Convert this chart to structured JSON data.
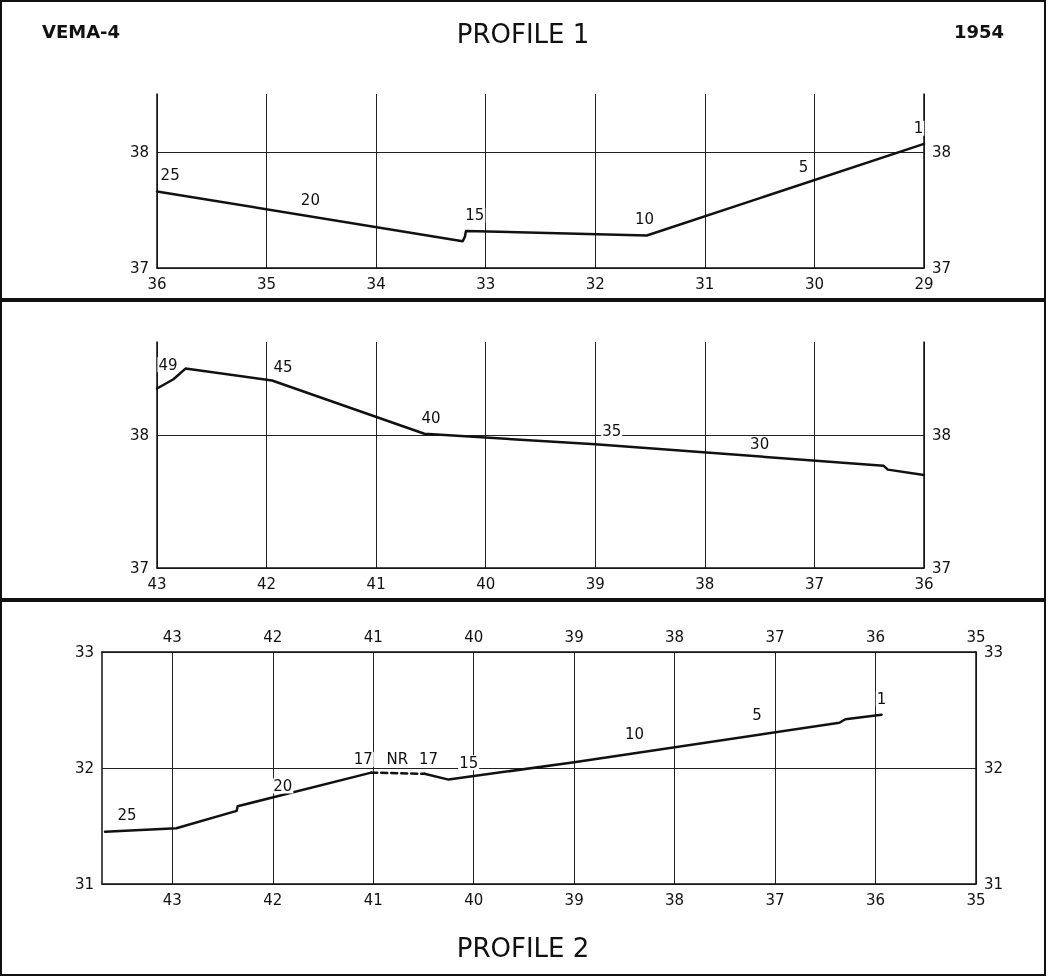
{
  "chart_data": [
    {
      "type": "line",
      "title": "PROFILE 1",
      "annotations": [
        "VEMA-4",
        "1954",
        {
          "text": "25",
          "x": 35.88,
          "y": 37.68
        },
        {
          "text": "20",
          "x": 34.6,
          "y": 37.46
        },
        {
          "text": "15",
          "x": 33.1,
          "y": 37.33
        },
        {
          "text": "10",
          "x": 31.55,
          "y": 37.3
        },
        {
          "text": "5",
          "x": 30.1,
          "y": 37.75
        },
        {
          "text": "1",
          "x": 29.05,
          "y": 38.08
        }
      ],
      "series": [
        {
          "color": "#111111",
          "x": [
            36,
            33.21,
            33.19,
            33.18,
            31.53,
            29.0
          ],
          "values": [
            37.66,
            37.23,
            37.27,
            37.32,
            37.28,
            38.07
          ]
        }
      ],
      "xlim": [
        36,
        29
      ],
      "xticks": [
        36,
        35,
        34,
        33,
        32,
        31,
        30,
        29
      ],
      "ylim": [
        37,
        38.5
      ],
      "yticks": [
        37,
        38
      ],
      "y2lim": [
        37,
        38.5
      ],
      "y2ticks": [
        37,
        38
      ],
      "grid": true,
      "marker": "none",
      "line_style": "solid"
    },
    {
      "type": "line",
      "annotations": [
        {
          "text": "49",
          "x": 42.9,
          "y": 38.42
        },
        {
          "text": "45",
          "x": 41.85,
          "y": 38.4
        },
        {
          "text": "40",
          "x": 40.5,
          "y": 38.02
        },
        {
          "text": "35",
          "x": 38.85,
          "y": 37.92
        },
        {
          "text": "30",
          "x": 37.5,
          "y": 37.82
        }
      ],
      "series": [
        {
          "color": "#111111",
          "x": [
            43.0,
            42.85,
            42.74,
            41.95,
            40.56,
            39.0,
            36.37,
            36.33,
            36.0
          ],
          "values": [
            38.35,
            38.42,
            38.5,
            38.41,
            38.01,
            37.93,
            37.77,
            37.74,
            37.7
          ]
        }
      ],
      "xlim": [
        43,
        36
      ],
      "xticks": [
        43,
        42,
        41,
        40,
        39,
        38,
        37,
        36
      ],
      "ylim": [
        37,
        38.7
      ],
      "yticks": [
        37,
        38
      ],
      "y2lim": [
        37,
        38.7
      ],
      "y2ticks": [
        37,
        38
      ],
      "grid": true,
      "marker": "none",
      "line_style": "solid"
    },
    {
      "type": "line",
      "title": "PROFILE 2",
      "annotations": [
        {
          "text": "25",
          "x": 43.45,
          "y": 31.47
        },
        {
          "text": "20",
          "x": 41.9,
          "y": 31.72
        },
        {
          "text": "17",
          "x": 41.1,
          "y": 31.95
        },
        {
          "text": "NR",
          "x": 40.76,
          "y": 31.955
        },
        {
          "text": "17",
          "x": 40.45,
          "y": 31.95
        },
        {
          "text": "15",
          "x": 40.05,
          "y": 31.92
        },
        {
          "text": "10",
          "x": 38.4,
          "y": 32.17
        },
        {
          "text": "5",
          "x": 37.18,
          "y": 32.33
        },
        {
          "text": "1",
          "x": 35.94,
          "y": 32.47
        }
      ],
      "series": [
        {
          "color": "#111111",
          "x": [
            43.67,
            42.96,
            42.36,
            42.35,
            41.02
          ],
          "values": [
            31.45,
            31.48,
            31.63,
            31.67,
            31.96
          ]
        },
        {
          "color": "#111111",
          "line_style": "dashed",
          "x": [
            41.02,
            40.49
          ],
          "values": [
            31.96,
            31.95
          ]
        },
        {
          "color": "#111111",
          "x": [
            40.49,
            40.25,
            39.0,
            36.36,
            36.3,
            35.94
          ],
          "values": [
            31.95,
            31.9,
            32.05,
            32.39,
            32.42,
            32.46
          ]
        }
      ],
      "xlim": [
        43.7,
        35
      ],
      "xticks": [
        43,
        42,
        41,
        40,
        39,
        38,
        37,
        36,
        35
      ],
      "x2lim": [
        43.7,
        35
      ],
      "x2ticks": [
        43,
        42,
        41,
        40,
        39,
        38,
        37,
        36,
        35
      ],
      "ylim": [
        31,
        33
      ],
      "yticks": [
        31,
        32,
        33
      ],
      "y2lim": [
        31,
        33
      ],
      "y2ticks": [
        31,
        32,
        33
      ],
      "grid": true,
      "marker": "none",
      "line_style": "solid"
    }
  ]
}
